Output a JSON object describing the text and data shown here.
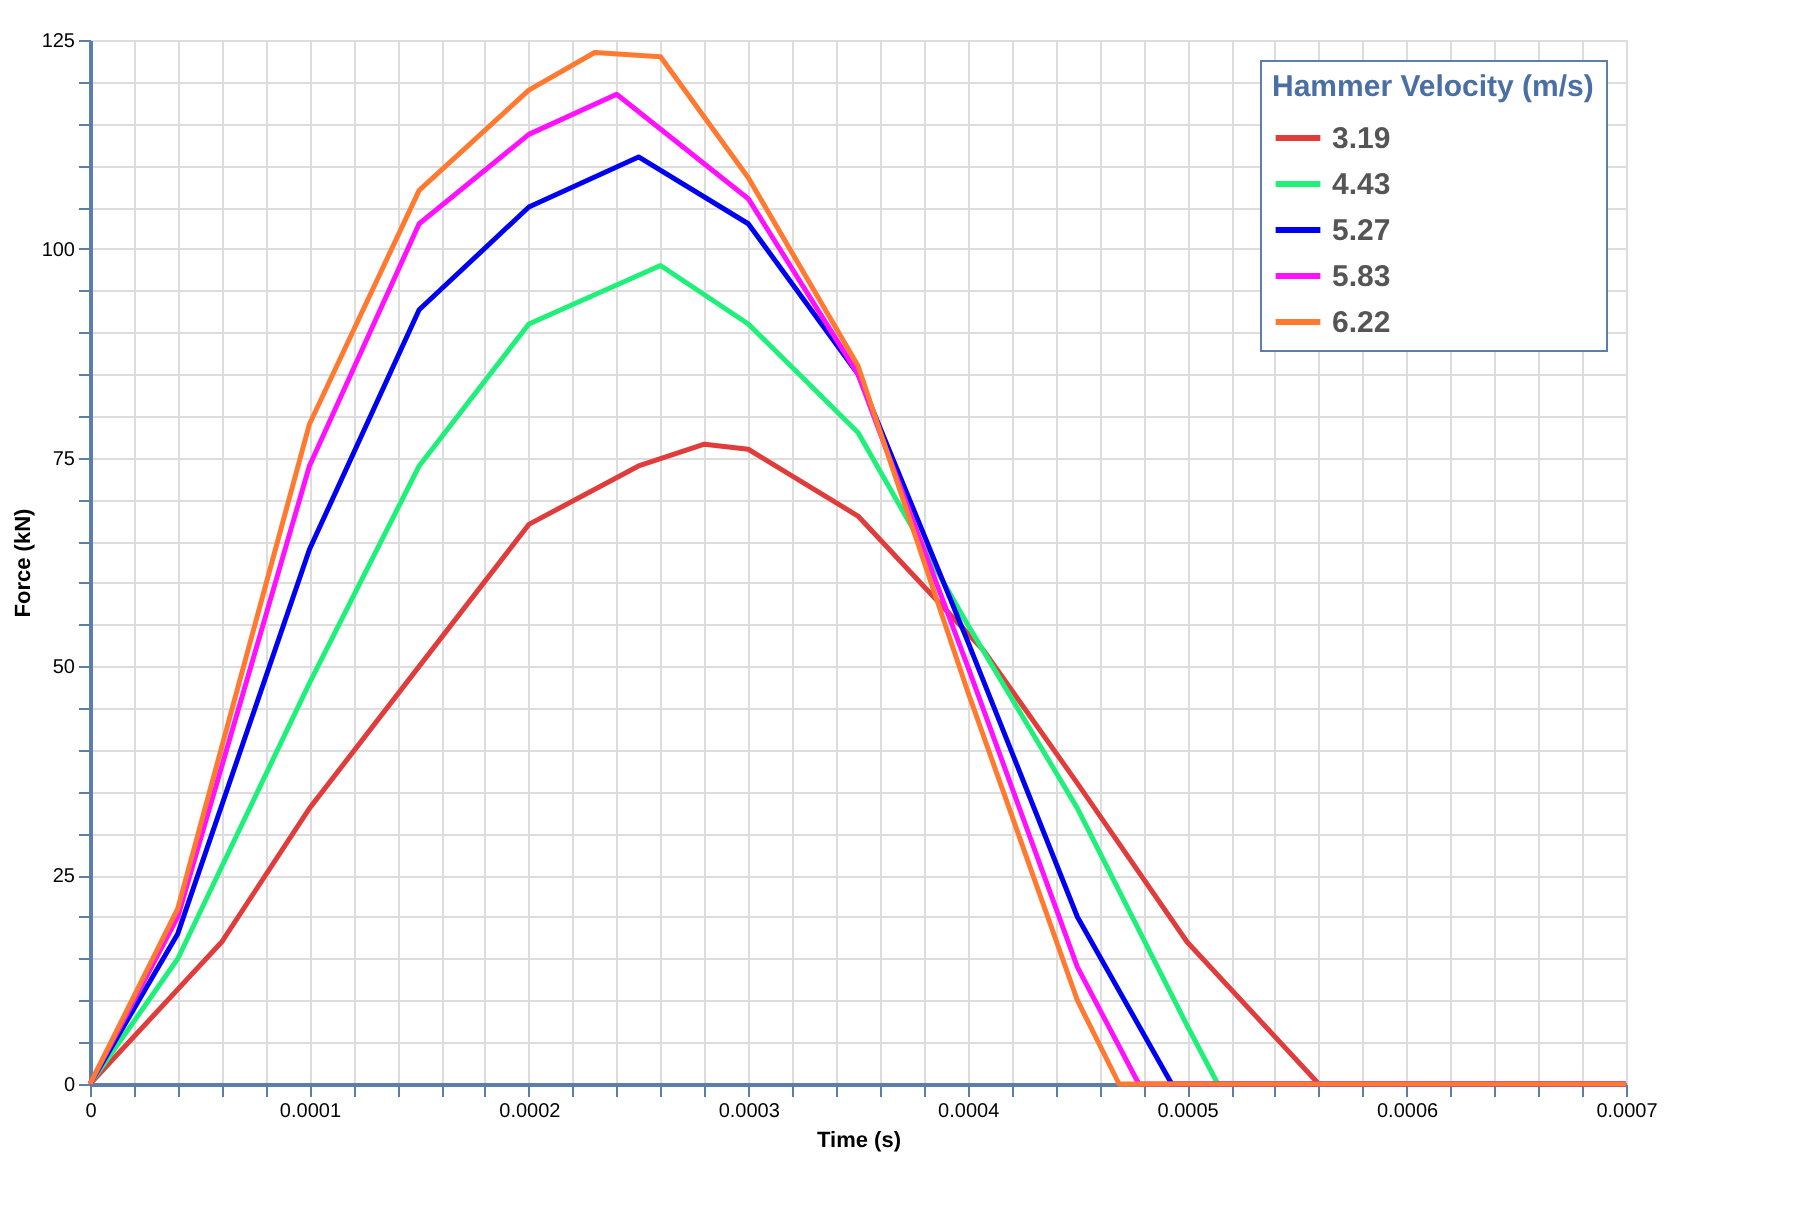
{
  "chart_data": {
    "type": "line",
    "xlabel": "Time (s)",
    "ylabel": "Force (kN)",
    "legend_title": "Hammer Velocity (m/s)",
    "legend": "top right",
    "grid": true,
    "line_style": "solid",
    "marker": "none",
    "xlim": [
      0,
      0.0007
    ],
    "ylim": [
      0,
      125
    ],
    "xticks": [
      0,
      {
        "value": 2e-05,
        "label": null
      },
      {
        "value": 4e-05,
        "label": null
      },
      {
        "value": 6e-05,
        "label": null
      },
      {
        "value": 8e-05,
        "label": null
      },
      {
        "value": 0.0001,
        "label": "0.0001"
      },
      {
        "value": 0.00012,
        "label": null
      },
      {
        "value": 0.00014,
        "label": null
      },
      {
        "value": 0.00016,
        "label": null
      },
      {
        "value": 0.00018,
        "label": null
      },
      {
        "value": 0.0002,
        "label": "0.0002"
      },
      {
        "value": 0.00022,
        "label": null
      },
      {
        "value": 0.00024,
        "label": null
      },
      {
        "value": 0.00026,
        "label": null
      },
      {
        "value": 0.00028,
        "label": null
      },
      {
        "value": 0.0003,
        "label": "0.0003"
      },
      {
        "value": 0.00032,
        "label": null
      },
      {
        "value": 0.00034,
        "label": null
      },
      {
        "value": 0.00036,
        "label": null
      },
      {
        "value": 0.00038,
        "label": null
      },
      {
        "value": 0.0004,
        "label": "0.0004"
      },
      {
        "value": 0.00042,
        "label": null
      },
      {
        "value": 0.00044,
        "label": null
      },
      {
        "value": 0.00046,
        "label": null
      },
      {
        "value": 0.00048,
        "label": null
      },
      {
        "value": 0.0005,
        "label": "0.0005"
      },
      {
        "value": 0.00052,
        "label": null
      },
      {
        "value": 0.00054,
        "label": null
      },
      {
        "value": 0.00056,
        "label": null
      },
      {
        "value": 0.00058,
        "label": null
      },
      {
        "value": 0.0006,
        "label": "0.0006"
      },
      {
        "value": 0.00062,
        "label": null
      },
      {
        "value": 0.00064,
        "label": null
      },
      {
        "value": 0.00066,
        "label": null
      },
      {
        "value": 0.00068,
        "label": null
      },
      {
        "value": 0.0007,
        "label": "0.0007"
      }
    ],
    "yticks": [
      0,
      {
        "value": 5,
        "label": null
      },
      {
        "value": 10,
        "label": null
      },
      {
        "value": 15,
        "label": null
      },
      {
        "value": 20,
        "label": null
      },
      25,
      {
        "value": 30,
        "label": null
      },
      {
        "value": 35,
        "label": null
      },
      {
        "value": 40,
        "label": null
      },
      {
        "value": 45,
        "label": null
      },
      50,
      {
        "value": 55,
        "label": null
      },
      {
        "value": 60,
        "label": null
      },
      {
        "value": 65,
        "label": null
      },
      {
        "value": 70,
        "label": null
      },
      75,
      {
        "value": 80,
        "label": null
      },
      {
        "value": 85,
        "label": null
      },
      {
        "value": 90,
        "label": null
      },
      {
        "value": 95,
        "label": null
      },
      100,
      {
        "value": 105,
        "label": null
      },
      {
        "value": 110,
        "label": null
      },
      {
        "value": 115,
        "label": null
      },
      {
        "value": 120,
        "label": null
      },
      125
    ],
    "series": [
      {
        "name": "3.19",
        "color": "#e03c3c",
        "x": [
          0,
          6e-05,
          0.0001,
          0.00015,
          0.0002,
          0.00025,
          0.00028,
          0.0003,
          0.00035,
          0.000407,
          0.00045,
          0.0005,
          0.00056,
          0.0007
        ],
        "values": [
          0,
          17,
          33,
          50,
          67,
          74,
          76.6,
          76,
          68,
          52,
          36,
          17,
          0,
          0
        ]
      },
      {
        "name": "4.43",
        "color": "#1ef07a",
        "x": [
          0,
          4e-05,
          0.0001,
          0.00015,
          0.0002,
          0.00026,
          0.0003,
          0.00035,
          0.0004,
          0.00045,
          0.0005,
          0.000514,
          0.0007
        ],
        "values": [
          0,
          15,
          48,
          74,
          91,
          98,
          91,
          78,
          55,
          33,
          7,
          0,
          0
        ]
      },
      {
        "name": "5.27",
        "color": "#0000f0",
        "x": [
          0,
          4e-05,
          0.0001,
          0.00015,
          0.0002,
          0.00025,
          0.0003,
          0.00035,
          0.0004,
          0.00045,
          0.000493,
          0.0007
        ],
        "values": [
          0,
          18,
          64,
          92.7,
          105,
          111,
          103,
          85,
          53,
          20,
          0,
          0
        ]
      },
      {
        "name": "5.83",
        "color": "#ff10ff",
        "x": [
          0,
          4e-05,
          0.0001,
          0.00015,
          0.0002,
          0.00024,
          0.0003,
          0.00035,
          0.0004,
          0.00045,
          0.000478,
          0.0007
        ],
        "values": [
          0,
          20,
          74,
          103,
          113.7,
          118.5,
          106,
          85,
          50,
          14,
          0,
          0
        ]
      },
      {
        "name": "6.22",
        "color": "#ff7a30",
        "x": [
          0,
          4e-05,
          0.0001,
          0.00015,
          0.0002,
          0.00023,
          0.00026,
          0.0003,
          0.00035,
          0.0004,
          0.00045,
          0.000469,
          0.0007
        ],
        "values": [
          0,
          21,
          79,
          107,
          119,
          123.5,
          123,
          108.5,
          86,
          47,
          10,
          0,
          0
        ]
      }
    ]
  }
}
